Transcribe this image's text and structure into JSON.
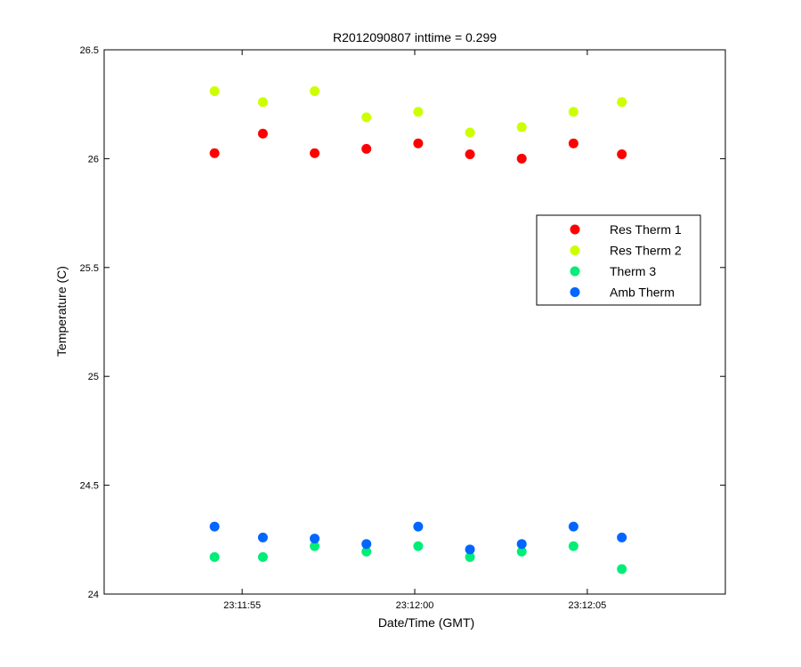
{
  "chart_data": {
    "type": "scatter",
    "title": "R2012090807 inttime = 0.299",
    "xlabel": "Date/Time (GMT)",
    "ylabel": "Temperature (C)",
    "x_axis": {
      "kind": "time",
      "range": [
        "23:11:51.0",
        "23:12:09.0"
      ],
      "tick_values": [
        "23:11:55",
        "23:12:00",
        "23:12:05"
      ],
      "tick_labels": [
        "23:11:55",
        "23:12:00",
        "23:12:05"
      ]
    },
    "y_axis": {
      "range": [
        24,
        26.5
      ],
      "ticks": [
        24,
        24.5,
        25,
        25.5,
        26,
        26.5
      ],
      "tick_labels": [
        "24",
        "24.5",
        "25",
        "25.5",
        "26",
        "26.5"
      ]
    },
    "grid": false,
    "legend_position": "right",
    "x": [
      "23:11:54.2",
      "23:11:55.6",
      "23:11:57.1",
      "23:11:58.6",
      "23:12:00.1",
      "23:12:01.6",
      "23:12:03.1",
      "23:12:04.6",
      "23:12:06.0"
    ],
    "series": [
      {
        "name": "Res Therm 1",
        "color": "#ff0000",
        "values": [
          26.025,
          26.115,
          26.025,
          26.045,
          26.07,
          26.02,
          26.0,
          26.07,
          26.02
        ]
      },
      {
        "name": "Res Therm 2",
        "color": "#ccff00",
        "values": [
          26.31,
          26.26,
          26.31,
          26.19,
          26.215,
          26.12,
          26.145,
          26.215,
          26.26
        ]
      },
      {
        "name": "Therm 3",
        "color": "#00ee77",
        "values": [
          24.17,
          24.17,
          24.22,
          24.195,
          24.22,
          24.17,
          24.195,
          24.22,
          24.115
        ]
      },
      {
        "name": "Amb Therm",
        "color": "#0066ff",
        "values": [
          24.31,
          24.26,
          24.255,
          24.23,
          24.31,
          24.205,
          24.23,
          24.31,
          24.26
        ]
      }
    ]
  }
}
